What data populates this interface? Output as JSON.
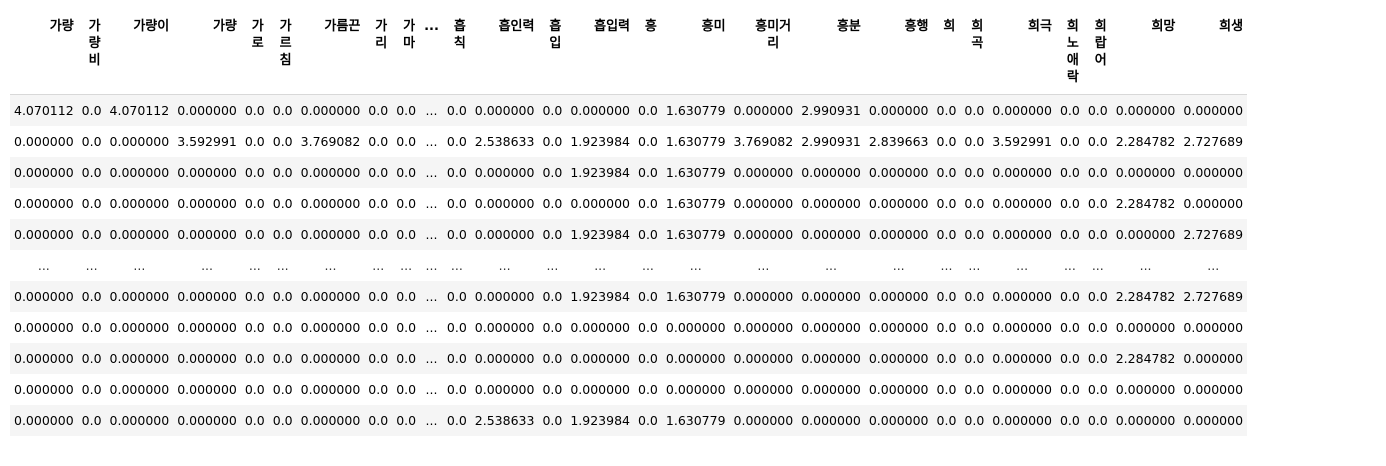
{
  "table": {
    "columns": [
      "가량",
      "가량비",
      "가량이",
      "가량",
      "가로",
      "가르침",
      "가름끈",
      "가리",
      "가마",
      "...",
      "흡칙",
      "흡인력",
      "흡입",
      "흡입력",
      "흥",
      "흥미",
      "흥미거리",
      "흥분",
      "흥행",
      "희",
      "희곡",
      "희극",
      "희노애락",
      "희랍어",
      "희망",
      "희생"
    ],
    "rows": [
      [
        "4.070112",
        "0.0",
        "4.070112",
        "0.000000",
        "0.0",
        "0.0",
        "0.000000",
        "0.0",
        "0.0",
        "...",
        "0.0",
        "0.000000",
        "0.0",
        "0.000000",
        "0.0",
        "1.630779",
        "0.000000",
        "2.990931",
        "0.000000",
        "0.0",
        "0.0",
        "0.000000",
        "0.0",
        "0.0",
        "0.000000",
        "0.000000"
      ],
      [
        "0.000000",
        "0.0",
        "0.000000",
        "3.592991",
        "0.0",
        "0.0",
        "3.769082",
        "0.0",
        "0.0",
        "...",
        "0.0",
        "2.538633",
        "0.0",
        "1.923984",
        "0.0",
        "1.630779",
        "3.769082",
        "2.990931",
        "2.839663",
        "0.0",
        "0.0",
        "3.592991",
        "0.0",
        "0.0",
        "2.284782",
        "2.727689"
      ],
      [
        "0.000000",
        "0.0",
        "0.000000",
        "0.000000",
        "0.0",
        "0.0",
        "0.000000",
        "0.0",
        "0.0",
        "...",
        "0.0",
        "0.000000",
        "0.0",
        "1.923984",
        "0.0",
        "1.630779",
        "0.000000",
        "0.000000",
        "0.000000",
        "0.0",
        "0.0",
        "0.000000",
        "0.0",
        "0.0",
        "0.000000",
        "0.000000"
      ],
      [
        "0.000000",
        "0.0",
        "0.000000",
        "0.000000",
        "0.0",
        "0.0",
        "0.000000",
        "0.0",
        "0.0",
        "...",
        "0.0",
        "0.000000",
        "0.0",
        "0.000000",
        "0.0",
        "1.630779",
        "0.000000",
        "0.000000",
        "0.000000",
        "0.0",
        "0.0",
        "0.000000",
        "0.0",
        "0.0",
        "2.284782",
        "0.000000"
      ],
      [
        "0.000000",
        "0.0",
        "0.000000",
        "0.000000",
        "0.0",
        "0.0",
        "0.000000",
        "0.0",
        "0.0",
        "...",
        "0.0",
        "0.000000",
        "0.0",
        "1.923984",
        "0.0",
        "1.630779",
        "0.000000",
        "0.000000",
        "0.000000",
        "0.0",
        "0.0",
        "0.000000",
        "0.0",
        "0.0",
        "0.000000",
        "2.727689"
      ],
      [
        "...",
        "...",
        "...",
        "...",
        "...",
        "...",
        "...",
        "...",
        "...",
        "...",
        "...",
        "...",
        "...",
        "...",
        "...",
        "...",
        "...",
        "...",
        "...",
        "...",
        "...",
        "...",
        "...",
        "...",
        "...",
        "..."
      ],
      [
        "0.000000",
        "0.0",
        "0.000000",
        "0.000000",
        "0.0",
        "0.0",
        "0.000000",
        "0.0",
        "0.0",
        "...",
        "0.0",
        "0.000000",
        "0.0",
        "1.923984",
        "0.0",
        "1.630779",
        "0.000000",
        "0.000000",
        "0.000000",
        "0.0",
        "0.0",
        "0.000000",
        "0.0",
        "0.0",
        "2.284782",
        "2.727689"
      ],
      [
        "0.000000",
        "0.0",
        "0.000000",
        "0.000000",
        "0.0",
        "0.0",
        "0.000000",
        "0.0",
        "0.0",
        "...",
        "0.0",
        "0.000000",
        "0.0",
        "0.000000",
        "0.0",
        "0.000000",
        "0.000000",
        "0.000000",
        "0.000000",
        "0.0",
        "0.0",
        "0.000000",
        "0.0",
        "0.0",
        "0.000000",
        "0.000000"
      ],
      [
        "0.000000",
        "0.0",
        "0.000000",
        "0.000000",
        "0.0",
        "0.0",
        "0.000000",
        "0.0",
        "0.0",
        "...",
        "0.0",
        "0.000000",
        "0.0",
        "0.000000",
        "0.0",
        "0.000000",
        "0.000000",
        "0.000000",
        "0.000000",
        "0.0",
        "0.0",
        "0.000000",
        "0.0",
        "0.0",
        "2.284782",
        "0.000000"
      ],
      [
        "0.000000",
        "0.0",
        "0.000000",
        "0.000000",
        "0.0",
        "0.0",
        "0.000000",
        "0.0",
        "0.0",
        "...",
        "0.0",
        "0.000000",
        "0.0",
        "0.000000",
        "0.0",
        "0.000000",
        "0.000000",
        "0.000000",
        "0.000000",
        "0.0",
        "0.0",
        "0.000000",
        "0.0",
        "0.0",
        "0.000000",
        "0.000000"
      ],
      [
        "0.000000",
        "0.0",
        "0.000000",
        "0.000000",
        "0.0",
        "0.0",
        "0.000000",
        "0.0",
        "0.0",
        "...",
        "0.0",
        "2.538633",
        "0.0",
        "1.923984",
        "0.0",
        "1.630779",
        "0.000000",
        "0.000000",
        "0.000000",
        "0.0",
        "0.0",
        "0.000000",
        "0.0",
        "0.0",
        "0.000000",
        "0.000000"
      ]
    ]
  }
}
